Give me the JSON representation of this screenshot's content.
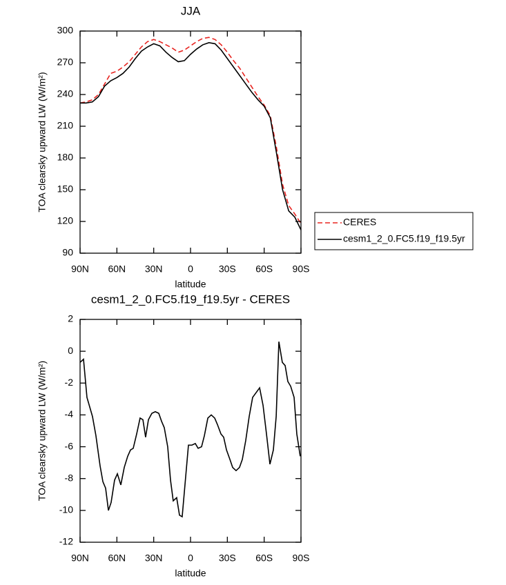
{
  "chart_data": [
    {
      "type": "line",
      "title": "JJA",
      "xlabel": "latitude",
      "ylabel": "TOA clearsky upward LW (W/m²)",
      "x": [
        90,
        85,
        80,
        75,
        70,
        65,
        60,
        55,
        50,
        45,
        40,
        35,
        30,
        25,
        20,
        15,
        10,
        5,
        0,
        -5,
        -10,
        -15,
        -20,
        -25,
        -30,
        -35,
        -40,
        -45,
        -50,
        -55,
        -60,
        -65,
        -70,
        -75,
        -80,
        -85,
        -90
      ],
      "series": [
        {
          "name": "CERES",
          "color": "#e8231f",
          "style": "dashed",
          "values": [
            232,
            233,
            235,
            240,
            250,
            260,
            262,
            266,
            271,
            278,
            285,
            290,
            292,
            290,
            287,
            284,
            280,
            282,
            286,
            290,
            293,
            294,
            292,
            287,
            280,
            272,
            265,
            256,
            247,
            238,
            230,
            220,
            190,
            155,
            135,
            127,
            118
          ]
        },
        {
          "name": "cesm1_2_0.FC5.f19_f19.5yr",
          "color": "#000000",
          "style": "solid",
          "values": [
            232,
            232,
            233,
            238,
            248,
            253,
            256,
            260,
            266,
            274,
            281,
            285,
            288,
            286,
            280,
            275,
            271,
            272,
            278,
            283,
            287,
            289,
            288,
            282,
            274,
            266,
            258,
            250,
            242,
            235,
            229,
            218,
            185,
            150,
            130,
            124,
            112
          ]
        }
      ],
      "xlim": [
        90,
        -90
      ],
      "xticks": [
        {
          "value": 90,
          "label": "90N"
        },
        {
          "value": 60,
          "label": "60N"
        },
        {
          "value": 30,
          "label": "30N"
        },
        0,
        {
          "value": -30,
          "label": "30S"
        },
        {
          "value": -60,
          "label": "60S"
        },
        {
          "value": -90,
          "label": "90S"
        }
      ],
      "ylim": [
        90,
        300
      ],
      "yticks": [
        90,
        120,
        150,
        180,
        210,
        240,
        270,
        300
      ],
      "legend": "right"
    },
    {
      "type": "line",
      "title": "cesm1_2_0.FC5.f19_f19.5yr - CERES",
      "xlabel": "latitude",
      "ylabel": "TOA clearsky upward LW (W/m²)",
      "x": [
        90,
        87.2,
        84.4,
        79.9,
        77.1,
        73.7,
        71.4,
        69.2,
        66.9,
        64.7,
        61.9,
        59.6,
        56.8,
        54.0,
        51.2,
        48.9,
        46.7,
        43.9,
        41.1,
        38.8,
        36.6,
        34.3,
        31.5,
        28.7,
        25.9,
        23.6,
        21.4,
        18.6,
        16.3,
        14.1,
        11.3,
        9.0,
        6.8,
        1.7,
        -1.1,
        -3.9,
        -6.2,
        -9.0,
        -11.3,
        -14.1,
        -16.9,
        -19.7,
        -21.9,
        -24.8,
        -27.0,
        -29.3,
        -32.1,
        -34.3,
        -37.1,
        -39.9,
        -42.2,
        -45.0,
        -47.8,
        -50.6,
        -56.3,
        -59.1,
        -61.9,
        -64.7,
        -67.5,
        -69.8,
        -72.0,
        -74.8,
        -77.1,
        -79.3,
        -81.6,
        -84.4,
        -86.6,
        -89.4
      ],
      "values": [
        -0.7,
        -0.5,
        -2.9,
        -4.1,
        -5.3,
        -7.2,
        -8.2,
        -8.6,
        -10.0,
        -9.5,
        -8.1,
        -7.7,
        -8.4,
        -7.3,
        -6.6,
        -6.2,
        -6.1,
        -5.2,
        -4.2,
        -4.3,
        -5.4,
        -4.3,
        -3.9,
        -3.8,
        -3.9,
        -4.4,
        -4.8,
        -6.0,
        -8.1,
        -9.4,
        -9.2,
        -10.3,
        -10.4,
        -5.9,
        -5.9,
        -5.8,
        -6.1,
        -6.0,
        -5.3,
        -4.2,
        -4.0,
        -4.2,
        -4.6,
        -5.2,
        -5.4,
        -6.2,
        -6.8,
        -7.3,
        -7.5,
        -7.3,
        -6.8,
        -5.6,
        -4.1,
        -2.9,
        -2.3,
        -3.4,
        -5.2,
        -7.1,
        -6.2,
        -4.1,
        0.6,
        -0.7,
        -0.9,
        -1.9,
        -2.2,
        -2.9,
        -5.2,
        -6.6
      ],
      "color": "#000000",
      "xlim": [
        90,
        -90
      ],
      "xticks": [
        {
          "value": 90,
          "label": "90N"
        },
        {
          "value": 60,
          "label": "60N"
        },
        {
          "value": 30,
          "label": "30N"
        },
        0,
        {
          "value": -30,
          "label": "30S"
        },
        {
          "value": -60,
          "label": "60S"
        },
        {
          "value": -90,
          "label": "90S"
        }
      ],
      "ylim": [
        -12,
        2
      ],
      "yticks": [
        -12,
        -10,
        -8,
        -6,
        -4,
        -2,
        0,
        2
      ]
    }
  ]
}
